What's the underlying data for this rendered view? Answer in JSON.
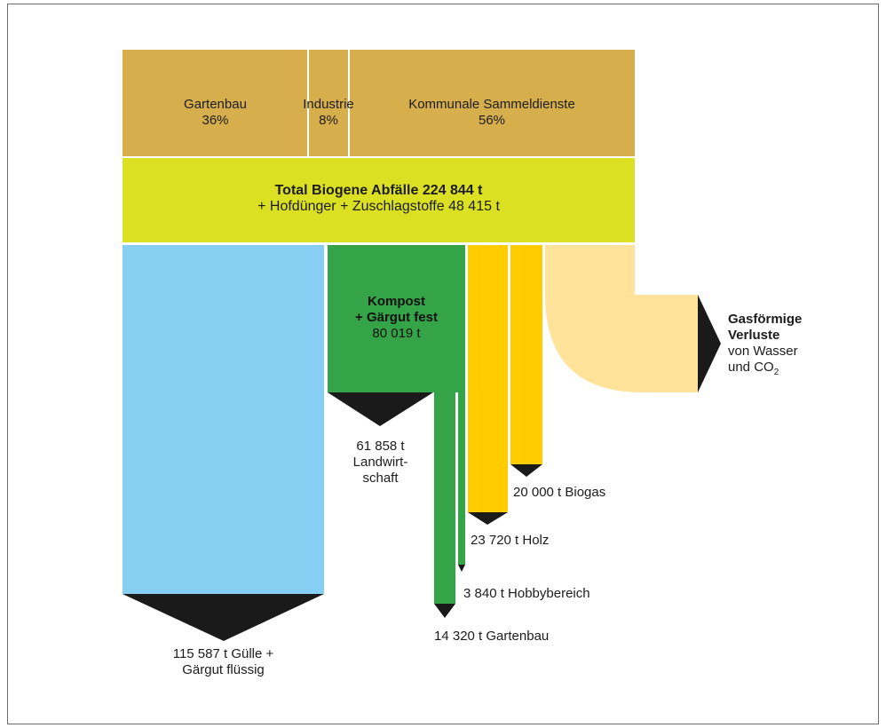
{
  "colors": {
    "source": "#d6ae4c",
    "total": "#dce022",
    "guelle": "#86cff3",
    "kompost": "#35a347",
    "holz": "#ffcc00",
    "verluste": "#ffe39a",
    "arrow": "#1a1a1a"
  },
  "sources": [
    {
      "name": "Gartenbau",
      "pct": "36%",
      "share": 0.36
    },
    {
      "name": "Industrie",
      "pct": "8%",
      "share": 0.08
    },
    {
      "name": "Kommunale Sammeldienste",
      "pct": "56%",
      "share": 0.56
    }
  ],
  "total": {
    "title": "Total Biogene Abfälle 224 844  t",
    "sub": "+ Hofdünger + Zuschlagstoffe 48 415 t"
  },
  "kompost": {
    "line1": "Kompost",
    "line2": "+ Gärgut fest",
    "amount": "80 019 t"
  },
  "outputs": {
    "guelle": {
      "line1": "115 587 t Gülle +",
      "line2": "Gärgut flüssig",
      "tonnes": 115587
    },
    "landwirtschaft": {
      "line1": "61 858 t",
      "line2": "Landwirt-",
      "line3": "schaft",
      "tonnes": 61858
    },
    "gartenbau": {
      "text": "14 320 t Gartenbau",
      "tonnes": 14320
    },
    "hobby": {
      "text": "3 840 t Hobbybereich",
      "tonnes": 3840
    },
    "holz": {
      "text": "23 720 t Holz",
      "tonnes": 23720
    },
    "biogas": {
      "text": "20 000 t Biogas",
      "tonnes": 20000
    }
  },
  "verluste": {
    "line1": "Gasförmige",
    "line2": "Verluste",
    "line3": "von Wasser",
    "line4_pre": "und CO",
    "line4_sub": "2"
  }
}
